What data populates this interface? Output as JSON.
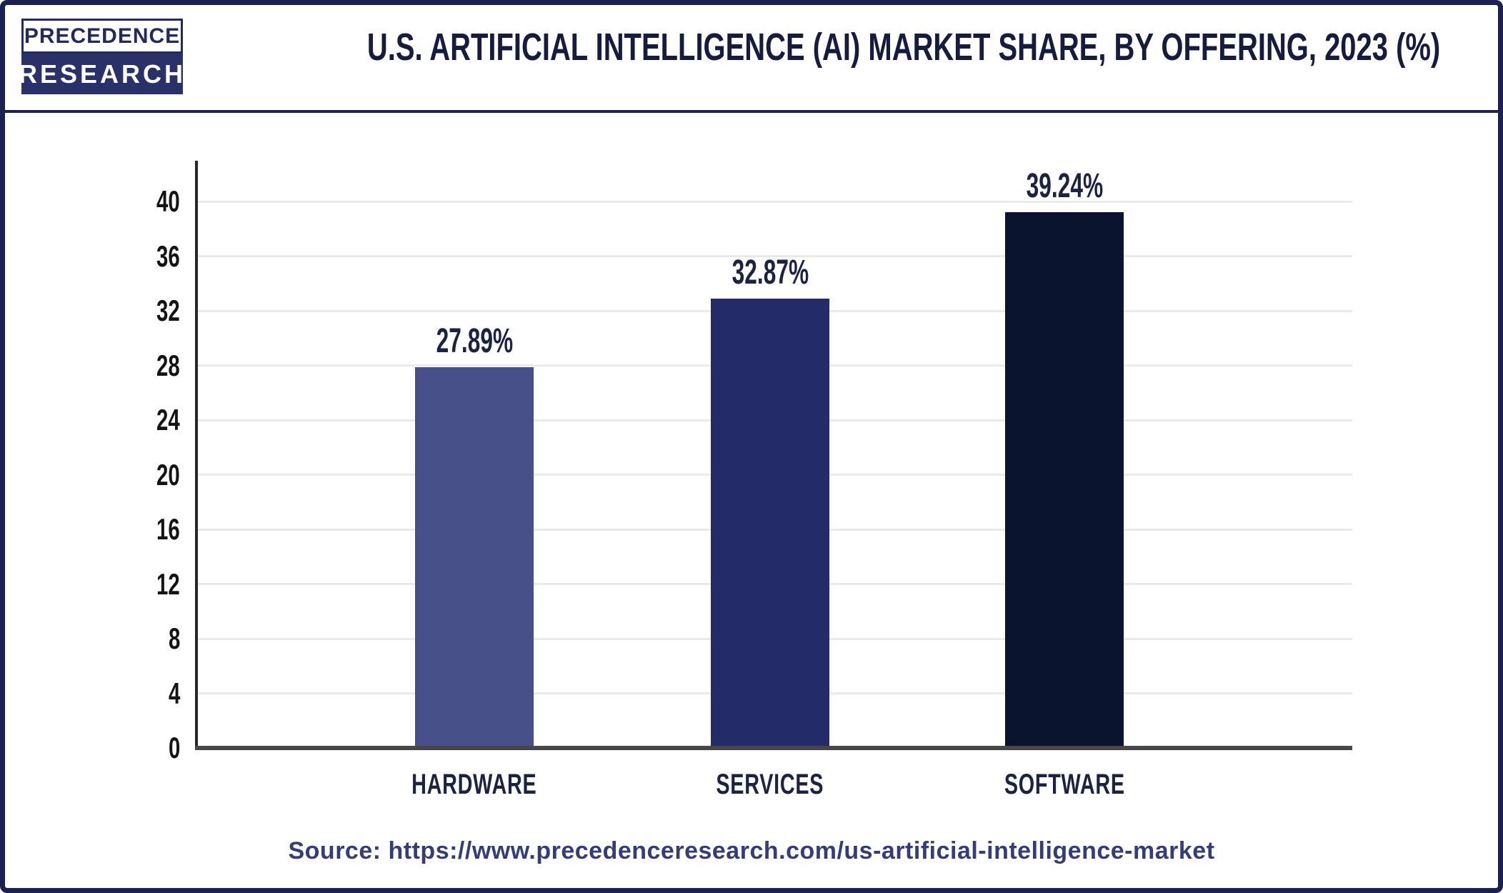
{
  "page": {
    "logo": {
      "line1": "PRECEDENCE",
      "line2": "RESEARCH"
    },
    "title": "U.S. ARTIFICIAL INTELLIGENCE (AI) MARKET SHARE, BY OFFERING, 2023 (%)",
    "source": "Source: https://www.precedenceresearch.com/us-artificial-intelligence-market"
  },
  "colors": {
    "background": "#ffffff",
    "frame_border": "#1b2150",
    "header_divider": "#1b2150",
    "title_text": "#151c3d",
    "logo_navy": "#2a3169",
    "logo_border": "#252a5d",
    "axis_line": "#262626",
    "baseline": "#474747",
    "gridline": "#eaeaea",
    "tick_text": "#141414",
    "value_label_text": "#1b2340",
    "category_text": "#1b2340",
    "source_text": "#343e75"
  },
  "chart_data": {
    "type": "bar",
    "title": "U.S. ARTIFICIAL INTELLIGENCE (AI) MARKET SHARE, BY OFFERING, 2023 (%)",
    "categories": [
      "HARDWARE",
      "SERVICES",
      "SOFTWARE"
    ],
    "values": [
      27.89,
      32.87,
      39.24
    ],
    "value_labels": [
      "27.89%",
      "32.87%",
      "39.24%"
    ],
    "bar_colors": [
      "#475089",
      "#232c66",
      "#0a142e"
    ],
    "xlabel": "",
    "ylabel": "",
    "ylim": [
      0,
      40
    ],
    "yticks": [
      0,
      4,
      8,
      12,
      16,
      20,
      24,
      28,
      32,
      36,
      40
    ],
    "grid": "horizontal-light",
    "legend": "none"
  }
}
